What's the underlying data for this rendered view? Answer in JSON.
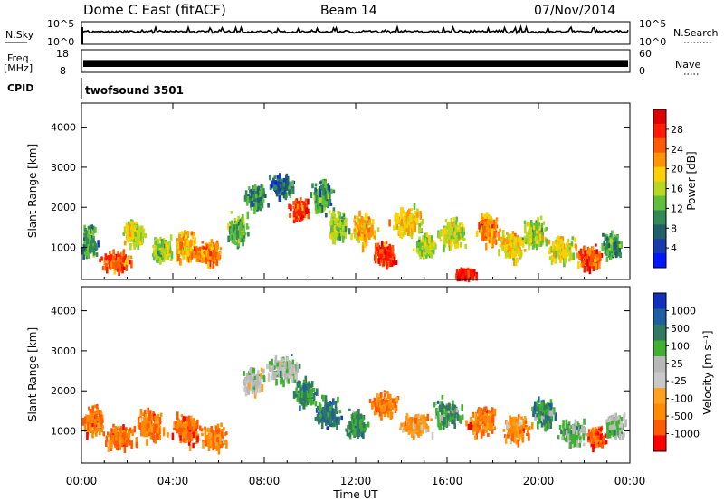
{
  "header": {
    "station": "Dome C East (fitACF)",
    "beam": "Beam 14",
    "date": "07/Nov/2014"
  },
  "top_panels": {
    "nsky_label": "N.Sky",
    "nsky_ticks": [
      "10^5",
      "10^0"
    ],
    "nsearch_label": "N.Search",
    "nsearch_ticks": [
      "10^5",
      "10^0"
    ],
    "freq_label_1": "Freq.",
    "freq_label_2": "[MHz]",
    "freq_ticks": [
      "18",
      "8"
    ],
    "nave_label": "Nave",
    "nave_ticks": [
      "60",
      "0"
    ],
    "cpid_label": "CPID",
    "cpid_value": "twofsound 3501"
  },
  "chart_data": [
    {
      "type": "heatmap",
      "name": "power",
      "ylabel": "Slant Range [km]",
      "yticks": [
        1000,
        2000,
        3000,
        4000
      ],
      "ylim": [
        200,
        4600
      ],
      "xlim": [
        0,
        24
      ],
      "colorbar_label": "Power [dB]",
      "colorbar_ticks": [
        "28",
        "24",
        "20",
        "16",
        "12",
        "8",
        "4"
      ],
      "colors": [
        "#0018ff",
        "#1a3bb0",
        "#1f5f6a",
        "#2f8a55",
        "#5fbf3a",
        "#b8d820",
        "#ffd000",
        "#ff9400",
        "#ff5a00",
        "#ff1a00",
        "#e00000"
      ],
      "blobs": [
        {
          "t": 0.3,
          "r": 1200,
          "dt": 0.5,
          "dr": 450,
          "v": 10
        },
        {
          "t": 1.5,
          "r": 700,
          "dt": 0.8,
          "dr": 300,
          "v": 24
        },
        {
          "t": 2.3,
          "r": 1400,
          "dt": 0.6,
          "dr": 400,
          "v": 16
        },
        {
          "t": 3.5,
          "r": 1000,
          "dt": 0.6,
          "dr": 400,
          "v": 14
        },
        {
          "t": 4.5,
          "r": 1100,
          "dt": 0.6,
          "dr": 500,
          "v": 20
        },
        {
          "t": 5.5,
          "r": 900,
          "dt": 0.8,
          "dr": 350,
          "v": 22
        },
        {
          "t": 6.8,
          "r": 1500,
          "dt": 0.6,
          "dr": 500,
          "v": 12
        },
        {
          "t": 7.6,
          "r": 2300,
          "dt": 0.6,
          "dr": 450,
          "v": 8
        },
        {
          "t": 8.8,
          "r": 2600,
          "dt": 0.8,
          "dr": 400,
          "v": 6
        },
        {
          "t": 9.5,
          "r": 2000,
          "dt": 0.5,
          "dr": 350,
          "v": 26
        },
        {
          "t": 10.5,
          "r": 2300,
          "dt": 0.6,
          "dr": 500,
          "v": 10
        },
        {
          "t": 11.2,
          "r": 1600,
          "dt": 0.6,
          "dr": 500,
          "v": 14
        },
        {
          "t": 12.3,
          "r": 1500,
          "dt": 0.7,
          "dr": 500,
          "v": 20
        },
        {
          "t": 13.2,
          "r": 900,
          "dt": 0.6,
          "dr": 350,
          "v": 26
        },
        {
          "t": 14.2,
          "r": 1700,
          "dt": 0.8,
          "dr": 450,
          "v": 18
        },
        {
          "t": 15.0,
          "r": 1100,
          "dt": 0.6,
          "dr": 400,
          "v": 14
        },
        {
          "t": 16.2,
          "r": 1400,
          "dt": 0.8,
          "dr": 450,
          "v": 16
        },
        {
          "t": 16.8,
          "r": 400,
          "dt": 0.6,
          "dr": 150,
          "v": 28
        },
        {
          "t": 17.8,
          "r": 1500,
          "dt": 0.6,
          "dr": 500,
          "v": 22
        },
        {
          "t": 18.8,
          "r": 1100,
          "dt": 0.7,
          "dr": 450,
          "v": 18
        },
        {
          "t": 19.8,
          "r": 1400,
          "dt": 0.7,
          "dr": 450,
          "v": 14
        },
        {
          "t": 21.0,
          "r": 1000,
          "dt": 0.8,
          "dr": 450,
          "v": 16
        },
        {
          "t": 22.2,
          "r": 800,
          "dt": 0.6,
          "dr": 350,
          "v": 24
        },
        {
          "t": 23.2,
          "r": 1100,
          "dt": 0.5,
          "dr": 400,
          "v": 10
        }
      ]
    },
    {
      "type": "heatmap",
      "name": "velocity",
      "ylabel": "Slant Range [km]",
      "yticks": [
        1000,
        2000,
        3000,
        4000
      ],
      "ylim": [
        200,
        4600
      ],
      "xlim": [
        0,
        24
      ],
      "xticks": [
        "00:00",
        "04:00",
        "08:00",
        "12:00",
        "16:00",
        "20:00",
        "00:00"
      ],
      "xlabel": "Time UT",
      "colorbar_label": "Velocity [m s⁻¹]",
      "colorbar_ticks": [
        "1000",
        "500",
        "100",
        "25",
        "-25",
        "-100",
        "-500",
        "-1000"
      ],
      "colors": [
        "#ff0000",
        "#ff5a00",
        "#ff8a00",
        "#ffa020",
        "#c8c8c8",
        "#b8b8b8",
        "#40b030",
        "#2f7a60",
        "#1d5fa0",
        "#1030c0"
      ],
      "blobs": [
        {
          "t": 0.5,
          "r": 1300,
          "dt": 0.6,
          "dr": 450,
          "v": -0.6
        },
        {
          "t": 1.7,
          "r": 900,
          "dt": 0.9,
          "dr": 400,
          "v": -0.7
        },
        {
          "t": 3.0,
          "r": 1200,
          "dt": 0.8,
          "dr": 500,
          "v": -0.6
        },
        {
          "t": 4.6,
          "r": 1100,
          "dt": 0.8,
          "dr": 500,
          "v": -0.7
        },
        {
          "t": 5.8,
          "r": 900,
          "dt": 0.7,
          "dr": 350,
          "v": -0.6
        },
        {
          "t": 7.5,
          "r": 2300,
          "dt": 0.6,
          "dr": 450,
          "v": 0.0
        },
        {
          "t": 8.8,
          "r": 2600,
          "dt": 0.8,
          "dr": 400,
          "v": 0.1
        },
        {
          "t": 9.8,
          "r": 2000,
          "dt": 0.6,
          "dr": 450,
          "v": 0.5
        },
        {
          "t": 10.8,
          "r": 1500,
          "dt": 0.7,
          "dr": 500,
          "v": 0.6
        },
        {
          "t": 12.0,
          "r": 1200,
          "dt": 0.6,
          "dr": 400,
          "v": 0.5
        },
        {
          "t": 13.2,
          "r": 1700,
          "dt": 0.8,
          "dr": 400,
          "v": -0.6
        },
        {
          "t": 14.6,
          "r": 1200,
          "dt": 0.8,
          "dr": 400,
          "v": -0.4
        },
        {
          "t": 16.0,
          "r": 1500,
          "dt": 0.8,
          "dr": 450,
          "v": 0.4
        },
        {
          "t": 17.5,
          "r": 1300,
          "dt": 0.8,
          "dr": 500,
          "v": -0.6
        },
        {
          "t": 19.0,
          "r": 1100,
          "dt": 0.8,
          "dr": 450,
          "v": -0.5
        },
        {
          "t": 20.2,
          "r": 1500,
          "dt": 0.7,
          "dr": 450,
          "v": 0.5
        },
        {
          "t": 21.5,
          "r": 1000,
          "dt": 0.8,
          "dr": 400,
          "v": 0.3
        },
        {
          "t": 22.5,
          "r": 900,
          "dt": 0.5,
          "dr": 300,
          "v": -0.8
        },
        {
          "t": 23.3,
          "r": 1200,
          "dt": 0.5,
          "dr": 400,
          "v": 0.2
        }
      ]
    }
  ]
}
